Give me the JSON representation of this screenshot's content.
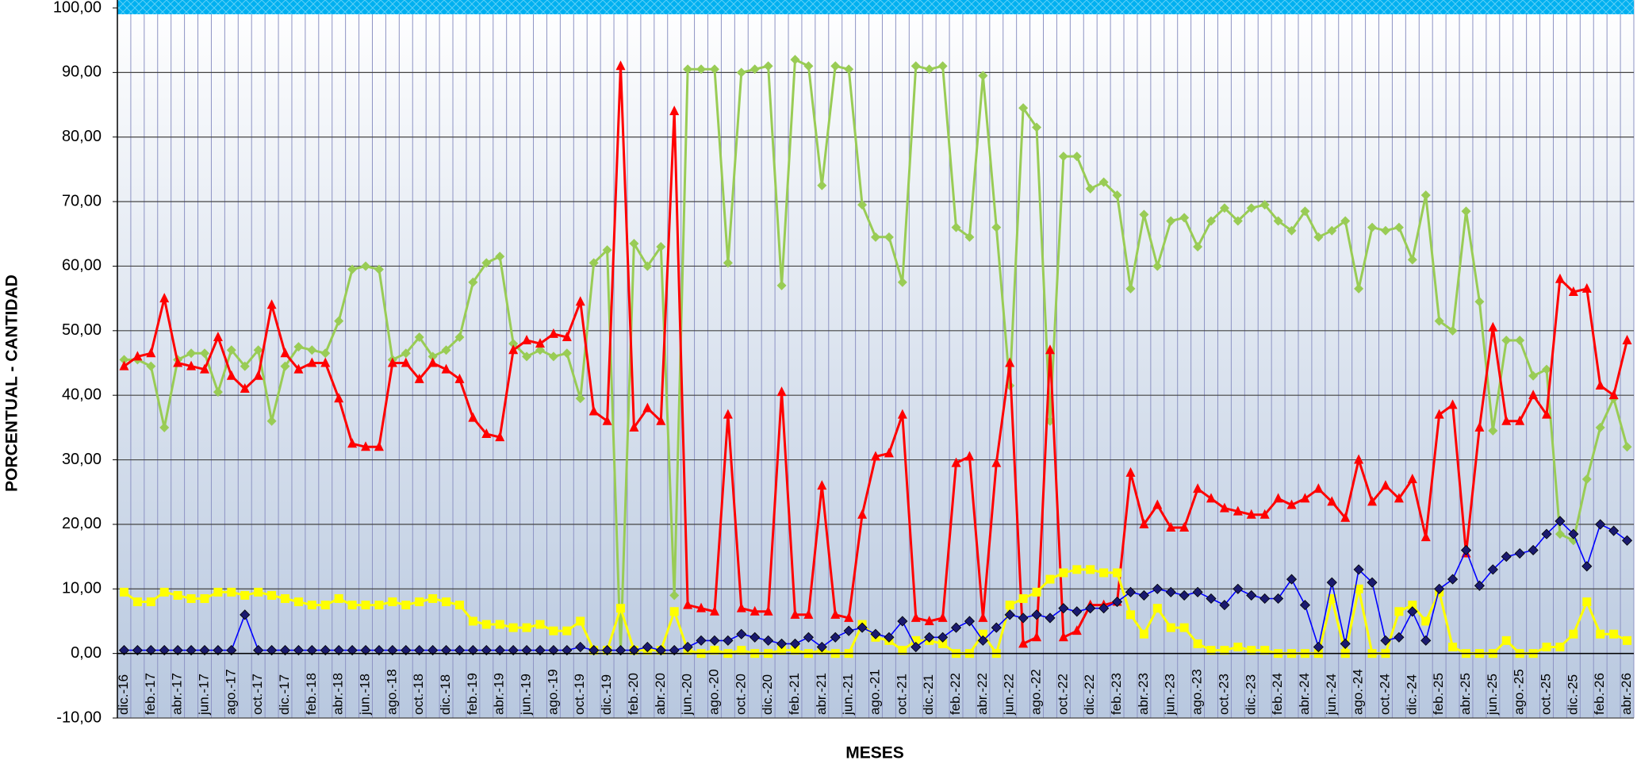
{
  "chart_data": {
    "type": "line",
    "y_label": "PORCENTUAL - CANTIDAD",
    "x_label": "MESES",
    "ylim": [
      -10,
      100
    ],
    "yticks": [
      {
        "value": -10,
        "label": "-10,00"
      },
      {
        "value": 0,
        "label": "0,00"
      },
      {
        "value": 10,
        "label": "10,00"
      },
      {
        "value": 20,
        "label": "20,00"
      },
      {
        "value": 30,
        "label": "30,00"
      },
      {
        "value": 40,
        "label": "40,00"
      },
      {
        "value": 50,
        "label": "50,00"
      },
      {
        "value": 60,
        "label": "60,00"
      },
      {
        "value": 70,
        "label": "70,00"
      },
      {
        "value": 80,
        "label": "80,00"
      },
      {
        "value": 90,
        "label": "90,00"
      },
      {
        "value": 100,
        "label": "100,00"
      }
    ],
    "grid": true,
    "categories": [
      "dic.-16",
      null,
      "feb.-17",
      null,
      "abr.-17",
      null,
      "jun.-17",
      null,
      "ago.-17",
      null,
      "oct.-17",
      null,
      "dic.-17",
      null,
      "feb.-18",
      null,
      "abr.-18",
      null,
      "jun.-18",
      null,
      "ago.-18",
      null,
      "oct.-18",
      null,
      "dic.-18",
      null,
      "feb.-19",
      null,
      "abr.-19",
      null,
      "jun.-19",
      null,
      "ago.-19",
      null,
      "oct.-19",
      null,
      "dic.-19",
      null,
      "feb.-20",
      null,
      "abr.-20",
      null,
      "jun.-20",
      null,
      "ago.-20",
      null,
      "oct.-20",
      null,
      "dic.-20",
      null,
      "feb.-21",
      null,
      "abr.-21",
      null,
      "jun.-21",
      null,
      "ago.-21",
      null,
      "oct.-21",
      null,
      "dic.-21",
      null,
      "feb.-22",
      null,
      "abr.-22",
      null,
      "jun.-22",
      null,
      "ago.-22",
      null,
      "oct.-22",
      null,
      "dic.-22",
      null,
      "feb.-23",
      null,
      "abr.-23",
      null,
      "jun.-23",
      null,
      "ago.-23",
      null,
      "oct.-23",
      null,
      "dic.-23",
      null,
      "feb.-24",
      null,
      "abr.-24",
      null,
      "jun.-24",
      null,
      "ago.-24",
      null,
      "oct.-24",
      null,
      "dic.-24",
      null,
      "feb.-25",
      null,
      "abr.-25",
      null,
      "jun.-25",
      null,
      "ago.-25",
      null,
      "oct.-25",
      null,
      "dic.-25",
      null,
      "feb.-26",
      null,
      "abr.-26"
    ],
    "series": [
      {
        "color": "#99cc55",
        "marker": "diamond",
        "marker_color": "#99cc55",
        "values": [
          45.5,
          45.5,
          44.5,
          35,
          45.5,
          46.5,
          46.5,
          40.5,
          47,
          44.5,
          47,
          36,
          44.5,
          47.5,
          47,
          46.5,
          51.5,
          59.5,
          60,
          59.5,
          45.5,
          46.5,
          49,
          46,
          47,
          49,
          57.5,
          60.5,
          61.5,
          48,
          46,
          47,
          46,
          46.5,
          39.5,
          60.5,
          62.5,
          0.5,
          63.5,
          60,
          63,
          9,
          90.5,
          90.5,
          90.5,
          60.5,
          90,
          90.5,
          91,
          57,
          92,
          91,
          72.5,
          91,
          90.5,
          69.5,
          64.5,
          64.5,
          57.5,
          91,
          90.5,
          91,
          66,
          64.5,
          89.5,
          66,
          41.5,
          84.5,
          81.5,
          36,
          77,
          77,
          72,
          73,
          71,
          56.5,
          68,
          60,
          67,
          67.5,
          63,
          67,
          69,
          67,
          69,
          69.5,
          67,
          65.5,
          68.5,
          64.5,
          65.5,
          67,
          56.5,
          66,
          65.5,
          66,
          61,
          71,
          51.5,
          50,
          68.5,
          54.5,
          34.5,
          48.5,
          48.5,
          43,
          44,
          18.5,
          17.5,
          27,
          35,
          39.5,
          32
        ]
      },
      {
        "color": "#ff0000",
        "marker": "triangle",
        "marker_color": "#ff0000",
        "values": [
          44.5,
          46,
          46.5,
          55,
          45,
          44.5,
          44,
          49,
          43,
          41,
          43,
          54,
          46.5,
          44,
          45,
          45,
          39.5,
          32.5,
          32,
          32,
          45,
          45,
          42.5,
          45,
          44,
          42.5,
          36.5,
          34,
          33.5,
          47,
          48.5,
          48,
          49.5,
          49,
          54.5,
          37.5,
          36,
          91,
          35,
          38,
          36,
          84,
          7.5,
          7,
          6.5,
          37,
          7,
          6.5,
          6.5,
          40.5,
          6,
          6,
          26,
          6,
          5.5,
          21.5,
          30.5,
          31,
          37,
          5.5,
          5,
          5.5,
          29.5,
          30.5,
          5.5,
          29.5,
          45,
          1.5,
          2.5,
          47,
          2.5,
          3.5,
          7.5,
          7.5,
          8,
          28,
          20,
          23,
          19.5,
          19.5,
          25.5,
          24,
          22.5,
          22,
          21.5,
          21.5,
          24,
          23,
          24,
          25.5,
          23.5,
          21,
          30,
          23.5,
          26,
          24,
          27,
          18,
          37,
          38.5,
          15.5,
          35,
          50.5,
          36,
          36,
          40,
          37,
          58,
          56,
          56.5,
          41.5,
          40,
          48.5
        ]
      },
      {
        "color": "#ffff00",
        "marker": "square",
        "marker_color": "#ffff00",
        "values": [
          9.5,
          8,
          8,
          9.5,
          9,
          8.5,
          8.5,
          9.5,
          9.5,
          9,
          9.5,
          9,
          8.5,
          8,
          7.5,
          7.5,
          8.5,
          7.5,
          7.5,
          7.5,
          8,
          7.5,
          8,
          8.5,
          8,
          7.5,
          5,
          4.5,
          4.5,
          4,
          4,
          4.5,
          3.5,
          3.5,
          5,
          0.5,
          0.5,
          7,
          0.5,
          0.5,
          0.5,
          6.5,
          0.5,
          0,
          0.5,
          0,
          0.5,
          0,
          0,
          0.5,
          0.5,
          0,
          0.5,
          0,
          0,
          4.5,
          2.5,
          2,
          0.5,
          2,
          2,
          1.5,
          0,
          0,
          3,
          0,
          7.5,
          8.5,
          9.5,
          11.5,
          12.5,
          13,
          13,
          12.5,
          12.5,
          6,
          3,
          7,
          4,
          4,
          1.5,
          0.5,
          0.5,
          1,
          0.5,
          0.5,
          0,
          0,
          0,
          0,
          8.5,
          0,
          10,
          0,
          0,
          6.5,
          7.5,
          5,
          9.5,
          1,
          0,
          0,
          0,
          2,
          0,
          0,
          1,
          1,
          3,
          8,
          3,
          3,
          2
        ]
      },
      {
        "color": "#0000ff",
        "marker": "diamond",
        "marker_color": "#1a1a6e",
        "values": [
          0.5,
          0.5,
          0.5,
          0.5,
          0.5,
          0.5,
          0.5,
          0.5,
          0.5,
          6,
          0.5,
          0.5,
          0.5,
          0.5,
          0.5,
          0.5,
          0.5,
          0.5,
          0.5,
          0.5,
          0.5,
          0.5,
          0.5,
          0.5,
          0.5,
          0.5,
          0.5,
          0.5,
          0.5,
          0.5,
          0.5,
          0.5,
          0.5,
          0.5,
          1,
          0.5,
          0.5,
          0.5,
          0.5,
          1,
          0.5,
          0.5,
          1,
          2,
          2,
          2,
          3,
          2.5,
          2,
          1.5,
          1.5,
          2.5,
          1,
          2.5,
          3.5,
          4,
          3,
          2.5,
          5,
          1,
          2.5,
          2.5,
          4,
          5,
          2,
          4,
          6,
          5.5,
          6,
          5.5,
          7,
          6.5,
          7,
          7,
          8,
          9.5,
          9,
          10,
          9.5,
          9,
          9.5,
          8.5,
          7.5,
          10,
          9,
          8.5,
          8.5,
          11.5,
          7.5,
          1,
          11,
          1.5,
          13,
          11,
          2,
          2.5,
          6.5,
          2,
          10,
          11.5,
          16,
          10.5,
          13,
          15,
          15.5,
          16,
          18.5,
          20.5,
          18.5,
          13.5,
          20,
          19,
          17.5
        ]
      }
    ]
  }
}
